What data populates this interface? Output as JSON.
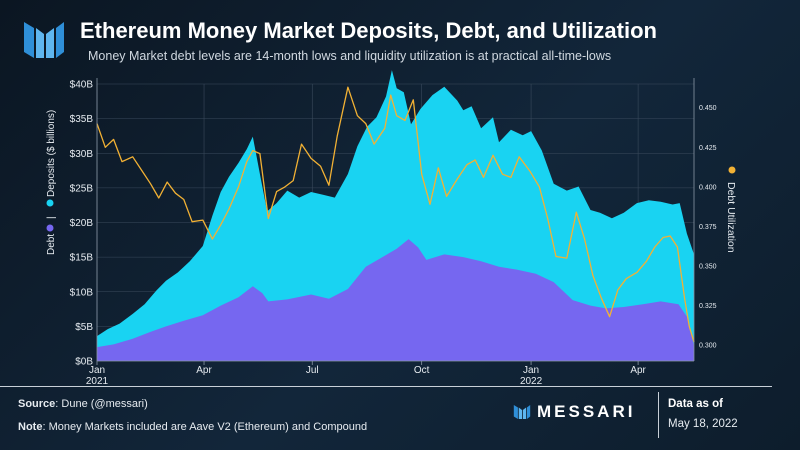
{
  "header": {
    "title": "Ethereum Money Market Deposits, Debt, and Utilization",
    "subtitle": "Money Market debt levels are 14-month lows and liquidity utilization is at practical all-time-lows"
  },
  "footer": {
    "source_label": "Source",
    "source_text": ": Dune (@messari)",
    "note_label": "Note",
    "note_text": ": Money Markets included are Aave V2 (Ethereum) and Compound",
    "brand": "MESSARI",
    "asof_label": "Data as of",
    "asof_date": "May 18, 2022"
  },
  "colors": {
    "deposits": "#19d3f2",
    "debt": "#7667f0",
    "utilization": "#f2b134",
    "grid": "#3a4a5c",
    "axis_text": "#e6ebf0"
  },
  "chart_data": {
    "type": "area",
    "x_ticks": [
      {
        "label": "Jan",
        "sub": "2021",
        "date": "2021-01-01"
      },
      {
        "label": "Apr",
        "sub": "",
        "date": "2021-04-01"
      },
      {
        "label": "Jul",
        "sub": "",
        "date": "2021-07-01"
      },
      {
        "label": "Oct",
        "sub": "",
        "date": "2021-10-01"
      },
      {
        "label": "Jan",
        "sub": "2022",
        "date": "2022-01-01"
      },
      {
        "label": "Apr",
        "sub": "",
        "date": "2022-04-01"
      }
    ],
    "x_range": [
      "2021-01-01",
      "2022-05-18"
    ],
    "y_left": {
      "ticks": [
        "$0B",
        "$5B",
        "$10B",
        "$15B",
        "$20B",
        "$25B",
        "$30B",
        "$35B",
        "$40B"
      ],
      "range": [
        0,
        40
      ],
      "label_debt": "Debt",
      "label_sep": "|",
      "label_deposits": "Deposits  ($ billions)"
    },
    "y_right": {
      "ticks": [
        "0.300",
        "0.325",
        "0.350",
        "0.375",
        "0.400",
        "0.425",
        "0.450"
      ],
      "range": [
        0.29,
        0.465
      ],
      "label": "Debt Utilization"
    },
    "series": [
      {
        "name": "Deposits",
        "kind": "area",
        "points": [
          [
            "2021-01-01",
            3.6
          ],
          [
            "2021-01-10",
            4.6
          ],
          [
            "2021-01-20",
            5.4
          ],
          [
            "2021-01-31",
            6.8
          ],
          [
            "2021-02-10",
            8.2
          ],
          [
            "2021-02-20",
            10.2
          ],
          [
            "2021-02-28",
            11.6
          ],
          [
            "2021-03-10",
            12.8
          ],
          [
            "2021-03-20",
            14.4
          ],
          [
            "2021-03-31",
            16.6
          ],
          [
            "2021-04-08",
            21.0
          ],
          [
            "2021-04-15",
            24.4
          ],
          [
            "2021-04-22",
            26.6
          ],
          [
            "2021-04-30",
            28.6
          ],
          [
            "2021-05-07",
            30.6
          ],
          [
            "2021-05-12",
            32.4
          ],
          [
            "2021-05-18",
            27.0
          ],
          [
            "2021-05-24",
            21.6
          ],
          [
            "2021-06-01",
            22.8
          ],
          [
            "2021-06-10",
            24.6
          ],
          [
            "2021-06-20",
            23.6
          ],
          [
            "2021-06-30",
            24.4
          ],
          [
            "2021-07-10",
            24.0
          ],
          [
            "2021-07-20",
            23.6
          ],
          [
            "2021-07-31",
            27.0
          ],
          [
            "2021-08-08",
            31.0
          ],
          [
            "2021-08-16",
            33.8
          ],
          [
            "2021-08-24",
            35.2
          ],
          [
            "2021-09-01",
            38.2
          ],
          [
            "2021-09-06",
            42.0
          ],
          [
            "2021-09-10",
            39.4
          ],
          [
            "2021-09-16",
            38.8
          ],
          [
            "2021-09-22",
            34.2
          ],
          [
            "2021-09-30",
            36.4
          ],
          [
            "2021-10-10",
            38.4
          ],
          [
            "2021-10-20",
            39.6
          ],
          [
            "2021-10-31",
            37.6
          ],
          [
            "2021-11-05",
            36.2
          ],
          [
            "2021-11-12",
            36.8
          ],
          [
            "2021-11-20",
            33.6
          ],
          [
            "2021-11-30",
            35.2
          ],
          [
            "2021-12-05",
            31.6
          ],
          [
            "2021-12-15",
            33.4
          ],
          [
            "2021-12-25",
            32.6
          ],
          [
            "2022-01-01",
            33.2
          ],
          [
            "2022-01-10",
            30.4
          ],
          [
            "2022-01-20",
            25.6
          ],
          [
            "2022-01-31",
            24.6
          ],
          [
            "2022-02-10",
            25.2
          ],
          [
            "2022-02-20",
            21.8
          ],
          [
            "2022-02-28",
            21.4
          ],
          [
            "2022-03-10",
            20.6
          ],
          [
            "2022-03-20",
            21.4
          ],
          [
            "2022-03-31",
            22.8
          ],
          [
            "2022-04-10",
            23.2
          ],
          [
            "2022-04-20",
            23.0
          ],
          [
            "2022-04-30",
            22.6
          ],
          [
            "2022-05-06",
            22.8
          ],
          [
            "2022-05-12",
            18.4
          ],
          [
            "2022-05-18",
            15.4
          ]
        ]
      },
      {
        "name": "Debt",
        "kind": "area",
        "points": [
          [
            "2021-01-01",
            2.0
          ],
          [
            "2021-01-15",
            2.4
          ],
          [
            "2021-01-31",
            3.2
          ],
          [
            "2021-02-15",
            4.2
          ],
          [
            "2021-02-28",
            5.0
          ],
          [
            "2021-03-15",
            5.8
          ],
          [
            "2021-03-31",
            6.6
          ],
          [
            "2021-04-15",
            8.0
          ],
          [
            "2021-04-30",
            9.2
          ],
          [
            "2021-05-12",
            10.8
          ],
          [
            "2021-05-20",
            9.8
          ],
          [
            "2021-05-25",
            8.6
          ],
          [
            "2021-06-10",
            8.9
          ],
          [
            "2021-06-30",
            9.6
          ],
          [
            "2021-07-15",
            9.0
          ],
          [
            "2021-07-31",
            10.4
          ],
          [
            "2021-08-15",
            13.6
          ],
          [
            "2021-08-31",
            15.2
          ],
          [
            "2021-09-10",
            16.2
          ],
          [
            "2021-09-20",
            17.6
          ],
          [
            "2021-09-28",
            16.4
          ],
          [
            "2021-10-05",
            14.6
          ],
          [
            "2021-10-20",
            15.4
          ],
          [
            "2021-11-05",
            15.0
          ],
          [
            "2021-11-20",
            14.4
          ],
          [
            "2021-12-05",
            13.6
          ],
          [
            "2021-12-20",
            13.2
          ],
          [
            "2022-01-05",
            12.6
          ],
          [
            "2022-01-20",
            11.4
          ],
          [
            "2022-02-05",
            8.8
          ],
          [
            "2022-02-20",
            8.0
          ],
          [
            "2022-03-05",
            7.6
          ],
          [
            "2022-03-20",
            7.8
          ],
          [
            "2022-04-05",
            8.2
          ],
          [
            "2022-04-20",
            8.6
          ],
          [
            "2022-05-05",
            8.2
          ],
          [
            "2022-05-12",
            6.4
          ],
          [
            "2022-05-18",
            2.2
          ]
        ]
      },
      {
        "name": "Debt Utilization",
        "kind": "line",
        "axis": "right",
        "points": [
          [
            "2021-01-01",
            0.44
          ],
          [
            "2021-01-08",
            0.425
          ],
          [
            "2021-01-15",
            0.43
          ],
          [
            "2021-01-22",
            0.416
          ],
          [
            "2021-01-31",
            0.419
          ],
          [
            "2021-02-08",
            0.41
          ],
          [
            "2021-02-15",
            0.402
          ],
          [
            "2021-02-22",
            0.393
          ],
          [
            "2021-03-01",
            0.403
          ],
          [
            "2021-03-08",
            0.396
          ],
          [
            "2021-03-15",
            0.392
          ],
          [
            "2021-03-22",
            0.378
          ],
          [
            "2021-03-31",
            0.379
          ],
          [
            "2021-04-08",
            0.367
          ],
          [
            "2021-04-15",
            0.376
          ],
          [
            "2021-04-22",
            0.386
          ],
          [
            "2021-04-30",
            0.4
          ],
          [
            "2021-05-07",
            0.416
          ],
          [
            "2021-05-12",
            0.423
          ],
          [
            "2021-05-18",
            0.421
          ],
          [
            "2021-05-25",
            0.38
          ],
          [
            "2021-06-01",
            0.397
          ],
          [
            "2021-06-08",
            0.4
          ],
          [
            "2021-06-15",
            0.404
          ],
          [
            "2021-06-22",
            0.427
          ],
          [
            "2021-06-30",
            0.418
          ],
          [
            "2021-07-08",
            0.413
          ],
          [
            "2021-07-15",
            0.401
          ],
          [
            "2021-07-22",
            0.432
          ],
          [
            "2021-07-31",
            0.463
          ],
          [
            "2021-08-08",
            0.445
          ],
          [
            "2021-08-15",
            0.44
          ],
          [
            "2021-08-22",
            0.427
          ],
          [
            "2021-08-31",
            0.437
          ],
          [
            "2021-09-05",
            0.458
          ],
          [
            "2021-09-10",
            0.445
          ],
          [
            "2021-09-17",
            0.442
          ],
          [
            "2021-09-24",
            0.455
          ],
          [
            "2021-10-01",
            0.408
          ],
          [
            "2021-10-08",
            0.389
          ],
          [
            "2021-10-15",
            0.412
          ],
          [
            "2021-10-22",
            0.394
          ],
          [
            "2021-10-31",
            0.405
          ],
          [
            "2021-11-08",
            0.414
          ],
          [
            "2021-11-15",
            0.417
          ],
          [
            "2021-11-22",
            0.406
          ],
          [
            "2021-11-30",
            0.42
          ],
          [
            "2021-12-08",
            0.408
          ],
          [
            "2021-12-15",
            0.406
          ],
          [
            "2021-12-22",
            0.419
          ],
          [
            "2021-12-31",
            0.41
          ],
          [
            "2022-01-08",
            0.4
          ],
          [
            "2022-01-15",
            0.38
          ],
          [
            "2022-01-22",
            0.356
          ],
          [
            "2022-01-31",
            0.355
          ],
          [
            "2022-02-08",
            0.384
          ],
          [
            "2022-02-15",
            0.367
          ],
          [
            "2022-02-22",
            0.344
          ],
          [
            "2022-03-01",
            0.33
          ],
          [
            "2022-03-08",
            0.318
          ],
          [
            "2022-03-15",
            0.335
          ],
          [
            "2022-03-22",
            0.342
          ],
          [
            "2022-03-31",
            0.346
          ],
          [
            "2022-04-08",
            0.353
          ],
          [
            "2022-04-15",
            0.362
          ],
          [
            "2022-04-22",
            0.368
          ],
          [
            "2022-04-28",
            0.369
          ],
          [
            "2022-05-04",
            0.362
          ],
          [
            "2022-05-10",
            0.33
          ],
          [
            "2022-05-14",
            0.312
          ],
          [
            "2022-05-18",
            0.302
          ]
        ]
      }
    ],
    "grid": true
  }
}
